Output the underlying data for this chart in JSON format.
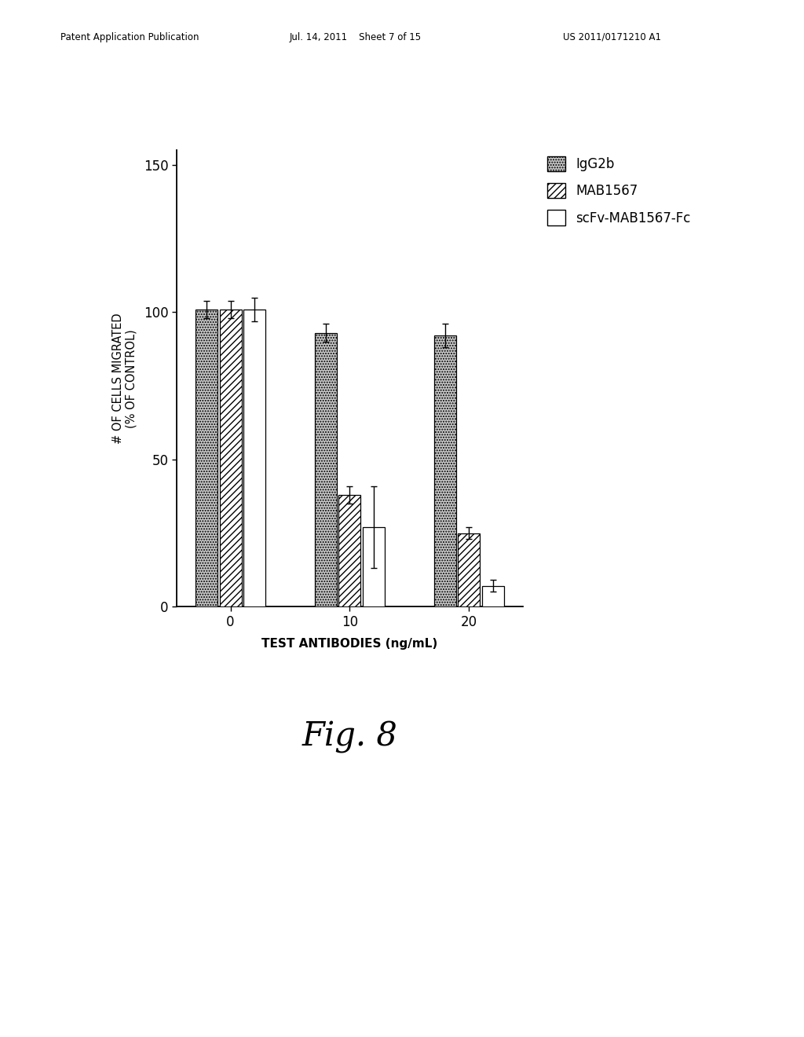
{
  "groups": [
    0,
    10,
    20
  ],
  "group_labels": [
    "0",
    "10",
    "20"
  ],
  "series": {
    "IgG2b": {
      "values": [
        101,
        93,
        92
      ],
      "errors": [
        3,
        3,
        4
      ],
      "hatch": "....",
      "facecolor": "#cccccc",
      "edgecolor": "#000000"
    },
    "MAB1567": {
      "values": [
        101,
        38,
        25
      ],
      "errors": [
        3,
        3,
        2
      ],
      "hatch": "////",
      "facecolor": "#ffffff",
      "edgecolor": "#000000"
    },
    "scFv-MAB1567-Fc": {
      "values": [
        101,
        27,
        7
      ],
      "errors": [
        4,
        14,
        2
      ],
      "hatch": "",
      "facecolor": "#ffffff",
      "edgecolor": "#000000"
    }
  },
  "ylabel": "# OF CELLS MIGRATED\n(% OF CONTROL)",
  "xlabel": "TEST ANTIBODIES (ng/mL)",
  "ylim": [
    0,
    155
  ],
  "yticks": [
    0,
    50,
    100,
    150
  ],
  "title_fig": "Fig. 8",
  "header_left": "Patent Application Publication",
  "header_mid": "Jul. 14, 2011    Sheet 7 of 15",
  "header_right": "US 2011/0171210 A1",
  "background_color": "#ffffff",
  "bar_width": 0.2,
  "legend_labels": [
    "IgG2b",
    "MAB1567",
    "scFv-MAB1567-Fc"
  ]
}
